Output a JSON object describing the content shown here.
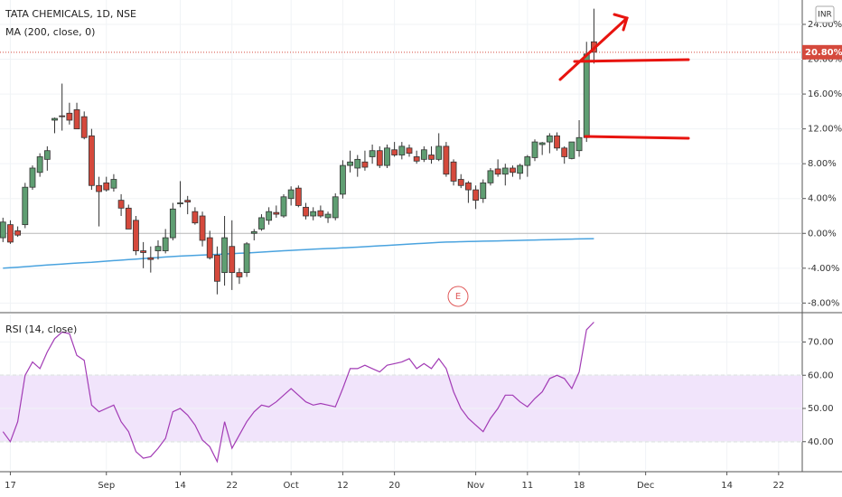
{
  "chart_data": [
    {
      "type": "candlestick",
      "title": "TATA CHEMICALS, 1D, NSE",
      "currency": "INR",
      "event": "E",
      "last_close_label": "20.80%",
      "up_color": "#5f9e72",
      "down_color": "#d5493c",
      "open": [
        -0.5,
        1.0,
        0.3,
        1.0,
        5.3,
        7.0,
        8.5,
        13.0,
        13.5,
        13.8,
        14.2,
        13.4,
        11.2,
        5.5,
        5.8,
        5.2,
        3.8,
        2.9,
        1.5,
        -2.0,
        -2.8,
        -2.0,
        -2.0,
        -0.5,
        3.5,
        3.8,
        2.5,
        2.0,
        -0.5,
        -2.5,
        -4.5,
        -1.5,
        -4.5,
        -4.5,
        0.0,
        0.5,
        1.5,
        2.4,
        2.0,
        4.0,
        5.2,
        3.0,
        2.0,
        2.6,
        1.8,
        1.8,
        4.5,
        7.8,
        7.5,
        8.2,
        8.8,
        9.5,
        7.8,
        9.6,
        9.0,
        9.8,
        8.8,
        8.5,
        9.0,
        8.5,
        10.0,
        8.2,
        6.2,
        5.8,
        5.0,
        4.0,
        5.8,
        7.4,
        6.8,
        7.5,
        6.9,
        7.8,
        8.7,
        10.2,
        10.5,
        11.2,
        9.8,
        8.6,
        9.5,
        11.0,
        22.0
      ],
      "high": [
        1.8,
        1.5,
        0.8,
        5.8,
        7.8,
        9.2,
        10.0,
        13.3,
        17.2,
        15.0,
        15.0,
        14.0,
        12.0,
        6.5,
        6.5,
        6.8,
        4.5,
        3.3,
        2.0,
        -1.0,
        -1.5,
        -0.8,
        0.5,
        3.5,
        6.0,
        4.3,
        3.0,
        2.5,
        0.3,
        -1.5,
        2.0,
        1.5,
        -4.0,
        -1.0,
        0.5,
        2.2,
        3.0,
        3.2,
        4.5,
        5.4,
        5.5,
        3.5,
        3.0,
        3.2,
        2.5,
        4.6,
        8.4,
        9.5,
        9.0,
        9.5,
        10.2,
        10.0,
        10.2,
        10.5,
        10.5,
        10.2,
        9.5,
        10.0,
        10.0,
        11.5,
        10.5,
        8.5,
        6.8,
        6.0,
        5.5,
        6.2,
        7.5,
        8.5,
        8.0,
        7.8,
        8.0,
        9.0,
        10.8,
        10.5,
        11.5,
        11.6,
        10.0,
        10.5,
        13.0,
        22.0,
        25.8
      ],
      "low": [
        -1.0,
        -1.2,
        -0.4,
        0.6,
        5.0,
        6.5,
        7.2,
        11.5,
        11.8,
        12.5,
        12.0,
        10.8,
        5.0,
        0.8,
        4.8,
        4.8,
        2.0,
        0.5,
        -2.5,
        -4.0,
        -4.5,
        -3.0,
        -2.3,
        -0.8,
        3.0,
        2.2,
        1.0,
        -1.5,
        -3.0,
        -7.0,
        -6.0,
        -6.5,
        -5.8,
        -5.0,
        -0.8,
        0.3,
        1.0,
        1.8,
        1.8,
        3.2,
        3.0,
        1.6,
        1.5,
        1.8,
        1.2,
        1.5,
        4.0,
        7.0,
        6.5,
        7.2,
        8.0,
        7.5,
        7.5,
        8.8,
        8.5,
        8.8,
        8.0,
        8.2,
        8.0,
        8.3,
        6.5,
        5.5,
        5.2,
        3.5,
        2.8,
        3.5,
        5.5,
        6.5,
        5.5,
        6.5,
        6.2,
        6.5,
        8.3,
        9.0,
        9.2,
        9.5,
        8.0,
        8.5,
        8.8,
        10.5,
        19.5
      ],
      "close": [
        1.3,
        -1.0,
        -0.2,
        5.3,
        7.5,
        8.8,
        9.5,
        13.2,
        13.4,
        13.0,
        12.0,
        11.0,
        5.5,
        4.8,
        5.0,
        6.2,
        2.9,
        0.5,
        -2.0,
        -2.2,
        -3.0,
        -1.5,
        -0.5,
        2.8,
        3.5,
        3.6,
        1.2,
        -0.8,
        -2.8,
        -5.5,
        -0.5,
        -4.5,
        -5.0,
        -1.2,
        0.2,
        1.8,
        2.5,
        2.2,
        4.2,
        5.0,
        3.2,
        2.0,
        2.5,
        2.0,
        2.2,
        4.2,
        7.8,
        8.2,
        8.5,
        7.6,
        9.5,
        7.8,
        9.8,
        9.0,
        10.0,
        9.2,
        8.3,
        9.6,
        8.5,
        10.0,
        6.8,
        6.0,
        5.5,
        5.0,
        3.8,
        5.8,
        7.2,
        6.8,
        7.5,
        7.0,
        7.8,
        8.8,
        10.5,
        10.4,
        11.2,
        9.8,
        8.8,
        10.5,
        11.0,
        20.6,
        20.8
      ],
      "ma": {
        "name": "MA (200, close, 0)",
        "color": "#4aa3df",
        "values": [
          -4.0,
          -3.94,
          -3.88,
          -3.82,
          -3.76,
          -3.7,
          -3.64,
          -3.58,
          -3.52,
          -3.46,
          -3.41,
          -3.36,
          -3.31,
          -3.25,
          -3.19,
          -3.13,
          -3.07,
          -3.01,
          -2.95,
          -2.89,
          -2.83,
          -2.77,
          -2.71,
          -2.66,
          -2.61,
          -2.57,
          -2.53,
          -2.49,
          -2.45,
          -2.41,
          -2.37,
          -2.33,
          -2.29,
          -2.25,
          -2.2,
          -2.15,
          -2.1,
          -2.05,
          -2.0,
          -1.95,
          -1.9,
          -1.86,
          -1.82,
          -1.78,
          -1.74,
          -1.7,
          -1.66,
          -1.62,
          -1.58,
          -1.53,
          -1.48,
          -1.43,
          -1.38,
          -1.33,
          -1.28,
          -1.23,
          -1.18,
          -1.13,
          -1.08,
          -1.04,
          -1.0,
          -0.98,
          -0.96,
          -0.94,
          -0.92,
          -0.9,
          -0.88,
          -0.86,
          -0.84,
          -0.82,
          -0.8,
          -0.78,
          -0.76,
          -0.74,
          -0.72,
          -0.7,
          -0.68,
          -0.66,
          -0.64,
          -0.62,
          -0.6
        ]
      },
      "ylim": [
        -9.0,
        26.8
      ],
      "yticks": [
        {
          "value": -8,
          "label": "-8.00%"
        },
        {
          "value": -4,
          "label": "-4.00%"
        },
        {
          "value": 0,
          "label": "0.00%"
        },
        {
          "value": 4,
          "label": "4.00%"
        },
        {
          "value": 8,
          "label": "8.00%"
        },
        {
          "value": 12,
          "label": "12.00%"
        },
        {
          "value": 16,
          "label": "16.00%"
        },
        {
          "value": 20,
          "label": "20.00%"
        },
        {
          "value": 24,
          "label": "24.00%"
        }
      ],
      "xlim": [
        -0.4,
        108.2
      ],
      "xticks": [
        {
          "value": 1,
          "label": "17"
        },
        {
          "value": 14,
          "label": "Sep"
        },
        {
          "value": 24,
          "label": "14"
        },
        {
          "value": 31,
          "label": "22"
        },
        {
          "value": 39,
          "label": "Oct"
        },
        {
          "value": 46,
          "label": "12"
        },
        {
          "value": 53,
          "label": "20"
        },
        {
          "value": 64,
          "label": "Nov"
        },
        {
          "value": 71,
          "label": "11"
        },
        {
          "value": 78,
          "label": "18"
        },
        {
          "value": 87,
          "label": "Dec"
        },
        {
          "value": 98,
          "label": "14"
        },
        {
          "value": 105,
          "label": "22"
        }
      ],
      "grid": true
    },
    {
      "type": "line",
      "title": "RSI (14, close)",
      "series": [
        {
          "name": "RSI (14, close)",
          "color": "#a23bb5",
          "values": [
            43,
            40,
            46,
            60,
            64,
            62,
            67,
            71,
            73,
            72.5,
            66,
            64.5,
            51,
            49,
            50,
            51,
            46,
            43,
            37,
            35,
            35.5,
            38,
            41,
            49,
            50,
            48,
            45,
            40.5,
            38.5,
            34,
            46,
            38,
            42,
            46,
            49,
            51,
            50.5,
            52,
            54,
            56,
            54,
            52,
            51,
            51.5,
            51,
            50.5,
            56,
            62,
            62,
            63,
            62,
            61,
            63,
            63.5,
            64,
            65,
            62,
            63.5,
            62,
            65,
            62,
            55,
            50,
            47,
            45,
            43,
            47,
            50,
            54,
            54,
            52,
            50.5,
            53,
            55,
            59,
            60,
            59,
            56,
            61,
            73.7,
            76
          ]
        }
      ],
      "band": [
        40,
        60
      ],
      "ylim": [
        31.5,
        78.3
      ],
      "yticks": [
        {
          "value": 40,
          "label": "40.00"
        },
        {
          "value": 50,
          "label": "50.00"
        },
        {
          "value": 60,
          "label": "60.00"
        },
        {
          "value": 70,
          "label": "70.00"
        }
      ]
    }
  ]
}
